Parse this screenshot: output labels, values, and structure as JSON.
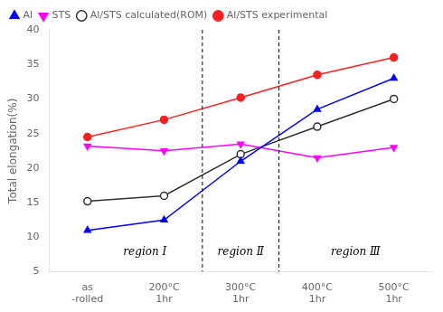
{
  "chart_data": {
    "type": "line",
    "categories": [
      "as\n-rolled",
      "200°C\n1hr",
      "300°C\n1hr",
      "400°C\n1hr",
      "500°C\n1hr"
    ],
    "series": [
      {
        "name": "Al",
        "color": "#0000ff",
        "marker": "triangle",
        "values": [
          11,
          12.5,
          21,
          28.5,
          33
        ]
      },
      {
        "name": "STS",
        "color": "#ff00ff",
        "marker": "triangle-down",
        "values": [
          23.2,
          22.5,
          23.5,
          21.5,
          23
        ]
      },
      {
        "name": "Al/STS calculated(ROM)",
        "color": "#303030",
        "marker": "circle-open",
        "values": [
          15.2,
          16,
          22,
          26,
          30
        ]
      },
      {
        "name": "Al/STS experimental",
        "color": "#ff2020",
        "marker": "circle",
        "values": [
          24.5,
          27,
          30.2,
          33.5,
          36
        ]
      }
    ],
    "ylabel": "Total elongation(%)",
    "ylim": [
      5,
      40
    ],
    "yticks": [
      5,
      10,
      15,
      20,
      25,
      30,
      35,
      40
    ],
    "vlines": [
      1.5,
      2.5
    ],
    "annotations": [
      {
        "text": "region Ⅰ",
        "x": 0.75,
        "y": 7.0
      },
      {
        "text": "region Ⅱ",
        "x": 2.0,
        "y": 7.0
      },
      {
        "text": "region Ⅲ",
        "x": 3.5,
        "y": 7.0
      }
    ],
    "grid": false,
    "legend": "upper left"
  }
}
